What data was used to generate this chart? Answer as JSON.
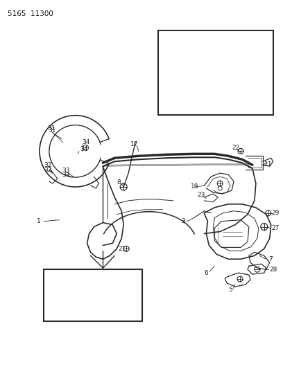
{
  "title": "5165  11300",
  "bg_color": "#ffffff",
  "line_color": "#2a2a2a",
  "text_color": "#1a1a1a",
  "fig_width": 4.08,
  "fig_height": 5.33,
  "dpi": 100,
  "lw": 0.9
}
